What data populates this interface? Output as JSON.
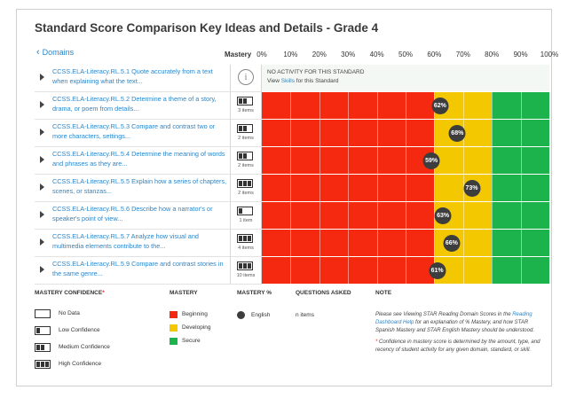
{
  "page_title": "Standard Score Comparison Key Ideas and Details - Grade 4",
  "back_link": {
    "icon": "chevron-left-icon",
    "label": "Domains"
  },
  "mastery_header": "Mastery",
  "percent_ticks": [
    "0%",
    "10%",
    "20%",
    "30%",
    "40%",
    "50%",
    "60%",
    "70%",
    "80%",
    "90%",
    "100%"
  ],
  "colors": {
    "beginning": "#f5290f",
    "developing": "#f4c800",
    "secure": "#1db34c",
    "no_activity": "#f4f8f4",
    "link": "#2a86c9",
    "dot": "#3d3d3d"
  },
  "zones": [
    {
      "name": "beginning",
      "from": 0,
      "to": 60
    },
    {
      "name": "developing",
      "from": 60,
      "to": 80
    },
    {
      "name": "secure",
      "from": 80,
      "to": 100
    }
  ],
  "rows": [
    {
      "standard": "CCSS.ELA-Literacy.RL.5.1 Quote accurately from a text when explaining what the text...",
      "confidence_level": 0,
      "items": "",
      "score": null,
      "score_label": "",
      "no_activity": true
    },
    {
      "standard": "CCSS.ELA-Literacy.RL.5.2 Determine a theme of a story, drama, or poem from details...",
      "confidence_level": 2,
      "items": "3 items",
      "score": 62,
      "score_label": "62%",
      "no_activity": false
    },
    {
      "standard": "CCSS.ELA-Literacy.RL.5.3 Compare and contrast two or more characters, settings...",
      "confidence_level": 2,
      "items": "2 items",
      "score": 68,
      "score_label": "68%",
      "no_activity": false
    },
    {
      "standard": "CCSS.ELA-Literacy.RL.5.4 Determine the meaning of words and phrases as they are...",
      "confidence_level": 2,
      "items": "2 items",
      "score": 59,
      "score_label": "59%",
      "no_activity": false
    },
    {
      "standard": "CCSS.ELA-Literacy.RL.5.5 Explain how a series of chapters, scenes, or stanzas...",
      "confidence_level": 3,
      "items": "2 items",
      "score": 73,
      "score_label": "73%",
      "no_activity": false
    },
    {
      "standard": "CCSS.ELA-Literacy.RL.5.6 Describe how a narrator's or speaker's point of view...",
      "confidence_level": 1,
      "items": "1 item",
      "score": 63,
      "score_label": "63%",
      "no_activity": false
    },
    {
      "standard": "CCSS.ELA-Literacy.RL.5.7 Analyze how visual and multimedia elements contribute to the...",
      "confidence_level": 3,
      "items": "4 items",
      "score": 66,
      "score_label": "66%",
      "no_activity": false
    },
    {
      "standard": "CCSS.ELA-Literacy.RL.5.9 Compare and contrast stories in the same genre...",
      "confidence_level": 3,
      "items": "10 items",
      "score": 61,
      "score_label": "61%",
      "no_activity": false
    }
  ],
  "no_activity": {
    "line1": "NO ACTIVITY FOR THIS STANDARD",
    "line2_pre": "View",
    "line2_link": "Skills",
    "line2_post": "for this Standard",
    "icon": "info-icon"
  },
  "legend": {
    "confidence_title": "MASTERY CONFIDENCE",
    "confidence_items": [
      {
        "label": "No Data",
        "level": 0
      },
      {
        "label": "Low Confidence",
        "level": 1
      },
      {
        "label": "Medium Confidence",
        "level": 2
      },
      {
        "label": "High Confidence",
        "level": 3
      }
    ],
    "mastery_title": "MASTERY",
    "mastery_items": [
      {
        "label": "Beginning",
        "color": "#f5290f"
      },
      {
        "label": "Developing",
        "color": "#f4c800"
      },
      {
        "label": "Secure",
        "color": "#1db34c"
      }
    ],
    "mastery_pct_title": "MASTERY %",
    "mastery_pct_item": "English",
    "questions_title": "QUESTIONS ASKED",
    "questions_item": "n items",
    "note_title": "NOTE",
    "note_p1_a": "Please see Viewing STAR Reading Domain Scores in the",
    "note_p1_link": "Reading Dashboard Help",
    "note_p1_b": "for an explanation of % Mastery, and how STAR Spanish Mastery and STAR English Mastery should be understood.",
    "note_p2": "Confidence in mastery score is determined by the amount, type, and recency of student activity for any given domain, standard, or skill."
  }
}
